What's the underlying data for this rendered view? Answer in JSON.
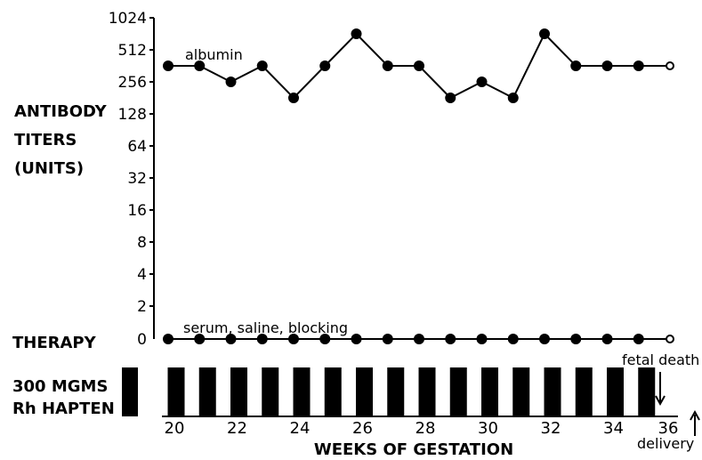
{
  "chart_data": {
    "type": "line",
    "y_scale": "log2",
    "y_ticks": [
      "1024",
      "512",
      "256",
      "128",
      "64",
      "32",
      "16",
      "8",
      "4",
      "2",
      "0"
    ],
    "y_label_lines": [
      "ANTIBODY",
      "TITERS",
      "(UNITS)"
    ],
    "x_ticks": [
      "20",
      "22",
      "24",
      "26",
      "28",
      "30",
      "32",
      "34",
      "36"
    ],
    "xlabel": "WEEKS OF GESTATION",
    "series": [
      {
        "name": "albumin",
        "x": [
          20,
          21,
          22,
          23,
          24,
          25,
          26,
          27,
          28,
          29,
          30,
          31,
          32,
          33,
          34,
          35,
          36
        ],
        "y": [
          362,
          362,
          256,
          362,
          181,
          362,
          724,
          362,
          362,
          181,
          256,
          181,
          724,
          362,
          362,
          362,
          362
        ],
        "open_last_point": true
      },
      {
        "name": "serum, saline, blocking",
        "x": [
          20,
          21,
          22,
          23,
          24,
          25,
          26,
          27,
          28,
          29,
          30,
          31,
          32,
          33,
          34,
          35,
          36
        ],
        "y": [
          0,
          0,
          0,
          0,
          0,
          0,
          0,
          0,
          0,
          0,
          0,
          0,
          0,
          0,
          0,
          0,
          0
        ],
        "open_last_point": true
      }
    ],
    "therapy_label": "THERAPY",
    "hapten_label_lines": [
      "300 MGMS",
      "Rh HAPTEN"
    ],
    "hapten_bar_weeks": [
      20,
      21,
      22,
      23,
      24,
      25,
      26,
      27,
      28,
      29,
      30,
      31,
      32,
      33,
      34,
      35
    ],
    "annotations": {
      "fetal_death": "fetal death",
      "delivery": "delivery"
    }
  }
}
